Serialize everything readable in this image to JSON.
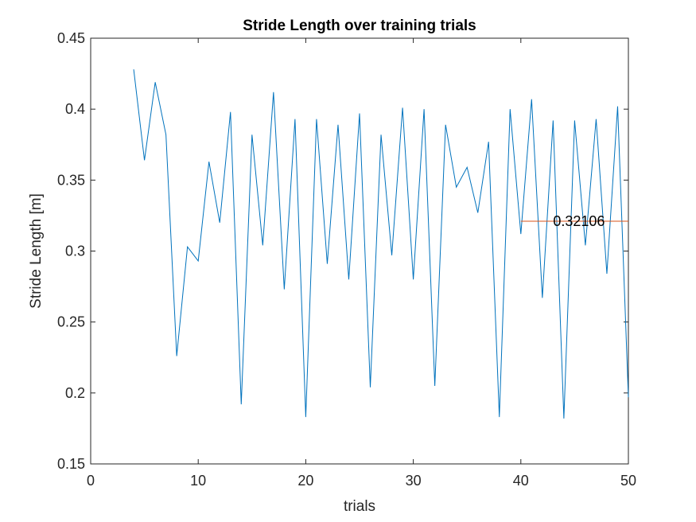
{
  "chart_data": {
    "type": "line",
    "title": "Stride Length over training trials",
    "xlabel": "trials",
    "ylabel": "Stride Length [m]",
    "xlim": [
      0,
      50
    ],
    "ylim": [
      0.15,
      0.45
    ],
    "xticks": [
      0,
      10,
      20,
      30,
      40,
      50
    ],
    "yticks": [
      0.15,
      0.2,
      0.25,
      0.3,
      0.35,
      0.4,
      0.45
    ],
    "xtick_labels": [
      "0",
      "10",
      "20",
      "30",
      "40",
      "50"
    ],
    "ytick_labels": [
      "0.15",
      "0.2",
      "0.25",
      "0.3",
      "0.35",
      "0.4",
      "0.45"
    ],
    "grid": false,
    "series": [
      {
        "color": "#0072BD",
        "x": [
          4,
          5,
          6,
          7,
          8,
          9,
          10,
          11,
          12,
          13,
          14,
          15,
          16,
          17,
          18,
          19,
          20,
          21,
          22,
          23,
          24,
          25,
          26,
          27,
          28,
          29,
          30,
          31,
          32,
          33,
          34,
          35,
          36,
          37,
          38,
          39,
          40,
          41,
          42,
          43,
          44,
          45,
          46,
          47,
          48,
          49,
          50
        ],
        "y": [
          0.428,
          0.364,
          0.419,
          0.382,
          0.226,
          0.303,
          0.293,
          0.363,
          0.32,
          0.398,
          0.192,
          0.382,
          0.304,
          0.412,
          0.273,
          0.393,
          0.183,
          0.393,
          0.291,
          0.389,
          0.28,
          0.397,
          0.204,
          0.382,
          0.297,
          0.401,
          0.28,
          0.4,
          0.205,
          0.389,
          0.345,
          0.359,
          0.327,
          0.377,
          0.183,
          0.4,
          0.312,
          0.407,
          0.267,
          0.392,
          0.182,
          0.392,
          0.304,
          0.393,
          0.284,
          0.402,
          0.197
        ]
      },
      {
        "color": "#D95319",
        "x": [
          40,
          50
        ],
        "y": [
          0.32106,
          0.32106
        ]
      }
    ],
    "annotations": [
      {
        "text": "0.32106",
        "x": 43.0,
        "y": 0.32106
      }
    ]
  }
}
